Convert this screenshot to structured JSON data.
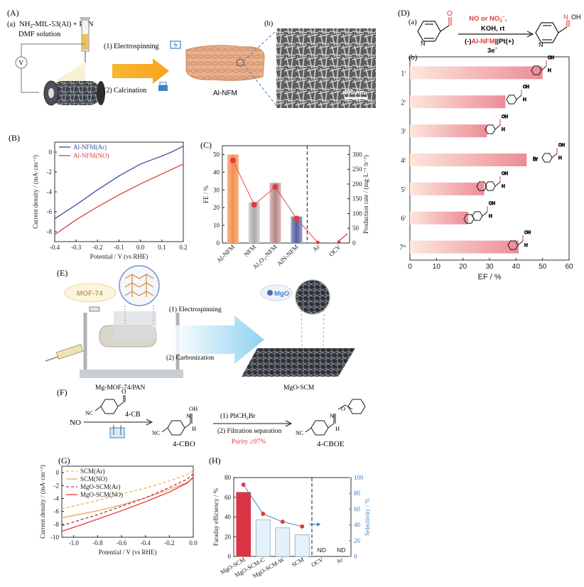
{
  "panels": {
    "A": {
      "label": "(A)",
      "sub_a": "(a)",
      "sub_b": "(b)",
      "precursor_line1": "NH",
      "precursor_sub": "2",
      "precursor_line1b": "-MIL-53(Al) + PAN",
      "precursor_line2": "DMF solution",
      "step1": "(1) Electrospinning",
      "step2": "(2) Calcination",
      "product": "Al-NFM",
      "voltage_symbol": "V",
      "scale_bar": "400 nm"
    },
    "B": {
      "label": "(B)",
      "ylabel": "Current density / (mA·cm⁻²)",
      "xlabel": "Potential / V (vs RHE)"
    },
    "C": {
      "label": "(C)",
      "ylabel_left": "FE / %",
      "ylabel_right": "Production rate / (mg·L⁻¹·h⁻¹)"
    },
    "D": {
      "label": "(D)",
      "sub_a": "(a)",
      "sub_b": "(b)",
      "cond_top": "NO or NO",
      "cond_top_sub": "2",
      "cond_top_sup": "−",
      "cond_mid": "KOH, rt",
      "cond_cell_pre": "(-)",
      "cond_cell_cat": "Al-NFM",
      "cond_cell_post": "||Pt(+)",
      "cond_e": "3e",
      "cond_e_sup": "−",
      "oh": "OH",
      "n": "N",
      "o": "O",
      "h": "H",
      "br": "Br",
      "xlabel": "EF / %"
    },
    "E": {
      "label": "(E)",
      "mof_label": "MOF-74",
      "mgo_label": "MgO",
      "step1": "(1) Electrospinning",
      "step2": "(2) Carbonization",
      "left_caption": "Mg-MOF-74/PAN",
      "right_caption": "MgO-SCM"
    },
    "F": {
      "label": "(F)",
      "no": "NO",
      "nc": "NC",
      "cb": "4-CB",
      "cbo": "4-CBO",
      "cboe": "4-CBOE",
      "step1_pre": "(1) PhCH",
      "step1_sub": "2",
      "step1_post": "Br",
      "step2": "(2) Filtration separation",
      "purity": "Purity ≥97%",
      "oh": "OH",
      "o": "O",
      "n": "N",
      "h": "H"
    },
    "G": {
      "label": "(G)",
      "ylabel": "Current density / (mA·cm⁻²)",
      "xlabel": "Potential / V (vs RHE)"
    },
    "H": {
      "label": "(H)",
      "ylabel_left": "Faraday efficiency / %",
      "ylabel_right": "Selectivity / %",
      "nd": "ND"
    }
  },
  "colors": {
    "ar_blue": "#3a4f9c",
    "no_red": "#e23b3b",
    "orange": "#f3a062",
    "dashed_orange": "#f2b24a",
    "maroon": "#b0304a",
    "light_blue": "#dff0fb",
    "bar_red": "#d93545",
    "accent_blue": "#3d83c4"
  },
  "chart_data": [
    {
      "id": "B",
      "type": "line",
      "xlabel": "Potential / V (vs RHE)",
      "ylabel": "Current density / (mA·cm⁻²)",
      "xlim": [
        -0.4,
        0.2
      ],
      "ylim": [
        -9,
        1
      ],
      "xticks": [
        "-0.4",
        "-0.3",
        "-0.2",
        "-0.1",
        "0.0",
        "0.1",
        "0.2"
      ],
      "yticks": [
        "0",
        "-2",
        "-4",
        "-6",
        "-8"
      ],
      "legend_position": "top-left",
      "series": [
        {
          "name": "Al-NFM(Ar)",
          "color": "#3a4f9c",
          "x": [
            -0.4,
            -0.3,
            -0.2,
            -0.1,
            0.0,
            0.05,
            0.1,
            0.15,
            0.2
          ],
          "y": [
            -6.7,
            -5.3,
            -3.8,
            -2.4,
            -1.2,
            -0.8,
            -0.4,
            0.05,
            0.6
          ]
        },
        {
          "name": "Al-NFM(NO)",
          "color": "#e23b3b",
          "x": [
            -0.4,
            -0.3,
            -0.2,
            -0.1,
            0.0,
            0.05,
            0.1,
            0.15,
            0.2
          ],
          "y": [
            -8.3,
            -6.8,
            -5.5,
            -4.3,
            -3.2,
            -2.7,
            -2.2,
            -1.7,
            -1.2
          ]
        }
      ]
    },
    {
      "id": "C",
      "type": "bar",
      "categories": [
        "Al-NFM",
        "NFM",
        "Al₂O₃-NFM",
        "AlN-NFM",
        "Ar",
        "OCV"
      ],
      "ylabel": "FE / %",
      "ylabel_right": "Production rate / (mg·L⁻¹·h⁻¹)",
      "ylim": [
        0,
        55
      ],
      "ylim_right": [
        0,
        330
      ],
      "yticks": [
        "0",
        "10",
        "20",
        "30",
        "40",
        "50"
      ],
      "yticks_right": [
        "0",
        "50",
        "100",
        "150",
        "200",
        "250",
        "300"
      ],
      "series": [
        {
          "name": "FE",
          "values": [
            50,
            23,
            34,
            15,
            null,
            null
          ],
          "colors": [
            "#f3a062",
            "#b9b9b9",
            "#c49a9a",
            "#6d74ad"
          ]
        },
        {
          "name": "Production rate",
          "values": [
            280,
            130,
            190,
            83,
            2,
            3
          ]
        }
      ]
    },
    {
      "id": "D",
      "type": "bar",
      "orientation": "horizontal",
      "xlabel": "EF / %",
      "xlim": [
        0,
        60
      ],
      "xticks": [
        "0",
        "10",
        "20",
        "30",
        "40",
        "50",
        "60"
      ],
      "categories": [
        "1ⁱ",
        "2ⁱ",
        "3ⁱ",
        "4ⁱ",
        "5ⁱ",
        "6ⁱ",
        "7ⁱⁱ"
      ],
      "values": [
        50,
        36,
        29,
        44,
        28,
        22,
        41
      ]
    },
    {
      "id": "G",
      "type": "line",
      "xlabel": "Potential / V (vs RHE)",
      "ylabel": "Current density / (mA·cm⁻²)",
      "xlim": [
        -1.1,
        0.0
      ],
      "ylim": [
        -10,
        1
      ],
      "xticks": [
        "-1.0",
        "-0.8",
        "-0.6",
        "-0.4",
        "-0.2",
        "0.0"
      ],
      "yticks": [
        "0",
        "-2",
        "-4",
        "-6",
        "-8",
        "-10"
      ],
      "legend_position": "top-left",
      "series": [
        {
          "name": "SCM(Ar)",
          "style": "dashed",
          "color": "#f2b24a",
          "x": [
            -1.1,
            -0.8,
            -0.6,
            -0.4,
            -0.2,
            -0.05,
            0.0
          ],
          "y": [
            -5.6,
            -4.3,
            -3.3,
            -2.4,
            -1.3,
            -0.3,
            0.3
          ]
        },
        {
          "name": "SCM(NO)",
          "style": "solid",
          "color": "#f3a062",
          "x": [
            -1.1,
            -0.8,
            -0.6,
            -0.4,
            -0.2,
            -0.05,
            0.0
          ],
          "y": [
            -7.0,
            -5.9,
            -5.0,
            -3.9,
            -2.6,
            -1.5,
            -0.9
          ]
        },
        {
          "name": "MgO-SCM(Ar)",
          "style": "dashed",
          "color": "#b0304a",
          "x": [
            -1.1,
            -0.8,
            -0.6,
            -0.4,
            -0.2,
            -0.05,
            0.0
          ],
          "y": [
            -8.2,
            -6.5,
            -5.2,
            -3.9,
            -2.3,
            -1.0,
            -0.2
          ]
        },
        {
          "name": "MgO-SCM(NO)",
          "style": "solid",
          "color": "#e23b3b",
          "x": [
            -1.1,
            -0.8,
            -0.6,
            -0.4,
            -0.2,
            -0.05,
            0.0
          ],
          "y": [
            -9.1,
            -7.2,
            -5.9,
            -4.5,
            -3.0,
            -1.6,
            -0.7
          ]
        }
      ]
    },
    {
      "id": "H",
      "type": "bar",
      "categories": [
        "MgO-SCM",
        "MgO-SCM-C",
        "MgO-SCM-W",
        "SCM",
        "OCV",
        "Ar"
      ],
      "ylabel": "Faraday efficiency / %",
      "ylabel_right": "Selectivity / %",
      "ylim": [
        0,
        80
      ],
      "ylim_right": [
        0,
        100
      ],
      "yticks": [
        "0",
        "20",
        "40",
        "60",
        "80"
      ],
      "yticks_right": [
        "0",
        "20",
        "40",
        "60",
        "80",
        "100"
      ],
      "series": [
        {
          "name": "Faraday efficiency",
          "values": [
            65,
            37,
            29,
            22,
            null,
            null
          ]
        },
        {
          "name": "Selectivity",
          "values": [
            91,
            54,
            44,
            38,
            null,
            null
          ]
        }
      ]
    }
  ]
}
